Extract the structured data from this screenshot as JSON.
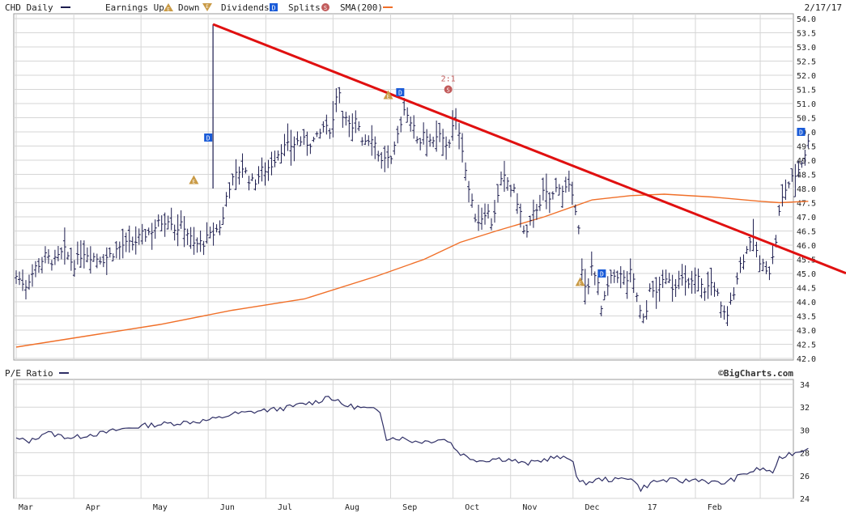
{
  "header": {
    "symbol_label": "CHD Daily",
    "earnings_label": "Earnings Up",
    "earnings_down_label": "Down",
    "dividends_label": "Dividends",
    "splits_label": "Splits",
    "sma_label": "SMA(200)",
    "date_label": "2/17/17"
  },
  "colors": {
    "price_bars": "#1c1c4e",
    "sma": "#f06f28",
    "trendline": "#e01010",
    "pe_line": "#2f2f66",
    "grid": "#d6d6d6",
    "earnings_marker": "#c99a45",
    "dividend_marker": "#1a5bd8",
    "split_marker": "#c25b5b"
  },
  "icons": {
    "earnings_up": "triangle-e-icon",
    "earnings_down": "inverted-triangle-e-icon",
    "dividend": "square-d-icon",
    "split": "circle-s-icon"
  },
  "split_ratio_label": "2:1",
  "watermark": "©BigCharts.com",
  "pe_panel": {
    "label": "P/E Ratio"
  },
  "chart_data": [
    {
      "type": "line",
      "title": "CHD Daily",
      "ylim": [
        42.0,
        54.0
      ],
      "y_ticks": [
        "54.0",
        "53.5",
        "53.0",
        "52.5",
        "52.0",
        "51.5",
        "51.0",
        "50.5",
        "50.0",
        "49.5",
        "49.0",
        "48.5",
        "48.0",
        "47.5",
        "47.0",
        "46.5",
        "46.0",
        "45.5",
        "45.0",
        "44.5",
        "44.0",
        "43.5",
        "43.0",
        "42.5",
        "42.0"
      ],
      "x_labels": [
        "Mar",
        "Apr",
        "May",
        "Jun",
        "Jul",
        "Aug",
        "Sep",
        "Oct",
        "Nov",
        "Dec",
        "17",
        "Feb"
      ],
      "series": [
        {
          "name": "CHD Daily",
          "style": "ohlc-bars",
          "close_path": [
            [
              0,
              44.9
            ],
            [
              4,
              44.6
            ],
            [
              8,
              45.2
            ],
            [
              12,
              45.6
            ],
            [
              16,
              45.4
            ],
            [
              20,
              45.8
            ],
            [
              24,
              45.3
            ],
            [
              28,
              45.8
            ],
            [
              32,
              45.6
            ],
            [
              36,
              45.5
            ],
            [
              40,
              45.7
            ],
            [
              44,
              46.0
            ],
            [
              48,
              46.0
            ],
            [
              52,
              46.3
            ],
            [
              56,
              46.5
            ],
            [
              60,
              46.8
            ],
            [
              64,
              47.0
            ],
            [
              66,
              46.6
            ],
            [
              70,
              46.7
            ],
            [
              74,
              46.0
            ],
            [
              78,
              46.1
            ],
            [
              82,
              46.4
            ],
            [
              86,
              46.8
            ],
            [
              88,
              48.0
            ],
            [
              92,
              48.5
            ],
            [
              94,
              48.8
            ],
            [
              96,
              48.5
            ],
            [
              98,
              48.2
            ],
            [
              100,
              48.3
            ],
            [
              102,
              48.6
            ],
            [
              106,
              48.8
            ],
            [
              110,
              49.4
            ],
            [
              114,
              49.5
            ],
            [
              118,
              49.7
            ],
            [
              122,
              49.6
            ],
            [
              126,
              49.8
            ],
            [
              128,
              50.2
            ],
            [
              130,
              50.0
            ],
            [
              132,
              50.4
            ],
            [
              134,
              51.8
            ],
            [
              136,
              50.7
            ],
            [
              138,
              50.3
            ],
            [
              140,
              50.0
            ],
            [
              142,
              50.5
            ],
            [
              144,
              49.8
            ],
            [
              146,
              49.7
            ],
            [
              148,
              49.9
            ],
            [
              150,
              49.5
            ],
            [
              152,
              48.9
            ],
            [
              154,
              49.2
            ],
            [
              156,
              48.8
            ],
            [
              158,
              49.5
            ],
            [
              160,
              50.3
            ],
            [
              162,
              50.9
            ],
            [
              164,
              50.5
            ],
            [
              166,
              50.0
            ],
            [
              168,
              49.6
            ],
            [
              170,
              50.1
            ],
            [
              172,
              49.8
            ],
            [
              174,
              49.5
            ],
            [
              176,
              49.9
            ],
            [
              178,
              49.7
            ],
            [
              180,
              49.5
            ],
            [
              182,
              50.2
            ],
            [
              184,
              50.3
            ],
            [
              186,
              49.4
            ],
            [
              188,
              48.2
            ],
            [
              190,
              47.4
            ],
            [
              192,
              46.8
            ],
            [
              194,
              47.0
            ],
            [
              196,
              47.3
            ],
            [
              198,
              46.8
            ],
            [
              200,
              47.4
            ],
            [
              202,
              48.2
            ],
            [
              204,
              48.4
            ],
            [
              206,
              48.0
            ],
            [
              208,
              47.8
            ],
            [
              210,
              47.2
            ],
            [
              212,
              46.2
            ],
            [
              214,
              46.7
            ],
            [
              216,
              47.2
            ],
            [
              218,
              47.5
            ],
            [
              220,
              47.9
            ],
            [
              222,
              47.6
            ],
            [
              224,
              47.8
            ],
            [
              226,
              48.2
            ],
            [
              228,
              47.9
            ],
            [
              230,
              48.1
            ],
            [
              232,
              47.5
            ],
            [
              234,
              47.2
            ],
            [
              236,
              44.7
            ],
            [
              238,
              44.2
            ],
            [
              240,
              45.4
            ],
            [
              242,
              44.8
            ],
            [
              244,
              43.6
            ],
            [
              246,
              44.4
            ],
            [
              248,
              44.8
            ],
            [
              250,
              45.0
            ],
            [
              252,
              44.9
            ],
            [
              254,
              44.7
            ],
            [
              256,
              45.0
            ],
            [
              258,
              44.5
            ],
            [
              260,
              43.6
            ],
            [
              262,
              43.2
            ],
            [
              264,
              44.6
            ],
            [
              266,
              44.1
            ],
            [
              268,
              44.7
            ],
            [
              270,
              44.6
            ],
            [
              272,
              44.9
            ],
            [
              274,
              44.4
            ],
            [
              276,
              45.0
            ],
            [
              278,
              44.7
            ],
            [
              280,
              44.5
            ],
            [
              282,
              44.8
            ],
            [
              284,
              44.9
            ],
            [
              286,
              44.4
            ],
            [
              288,
              44.5
            ],
            [
              290,
              44.7
            ],
            [
              292,
              44.3
            ],
            [
              294,
              43.6
            ],
            [
              296,
              43.5
            ],
            [
              298,
              44.0
            ],
            [
              300,
              44.8
            ],
            [
              302,
              45.4
            ],
            [
              304,
              45.7
            ],
            [
              306,
              46.3
            ],
            [
              308,
              46.0
            ],
            [
              310,
              45.2
            ],
            [
              312,
              45.3
            ],
            [
              314,
              45.1
            ],
            [
              316,
              45.8
            ],
            [
              318,
              47.2
            ],
            [
              320,
              47.9
            ],
            [
              322,
              48.2
            ],
            [
              324,
              48.4
            ],
            [
              326,
              48.7
            ],
            [
              328,
              49.1
            ],
            [
              330,
              49.6
            ]
          ],
          "ohlc_bar_count": 246
        },
        {
          "name": "SMA(200)",
          "points": [
            [
              0,
              42.4
            ],
            [
              30,
              42.8
            ],
            [
              60,
              43.2
            ],
            [
              90,
              43.7
            ],
            [
              120,
              44.1
            ],
            [
              150,
              44.9
            ],
            [
              170,
              45.5
            ],
            [
              185,
              46.1
            ],
            [
              200,
              46.5
            ],
            [
              220,
              47.0
            ],
            [
              240,
              47.6
            ],
            [
              256,
              47.75
            ],
            [
              270,
              47.8
            ],
            [
              290,
              47.7
            ],
            [
              310,
              47.55
            ],
            [
              318,
              47.5
            ],
            [
              330,
              47.55
            ]
          ]
        },
        {
          "name": "trendline",
          "points": [
            [
              82,
              53.8
            ],
            [
              340,
              45.2
            ]
          ]
        }
      ],
      "earnings_markers": [
        {
          "kind": "up",
          "t": 74,
          "price": 48.3
        },
        {
          "kind": "up",
          "t": 155,
          "price": 51.3
        },
        {
          "kind": "up",
          "t": 235,
          "price": 44.7
        }
      ],
      "dividend_markers": [
        {
          "t": 80,
          "price": 49.8
        },
        {
          "t": 160,
          "price": 51.4
        },
        {
          "t": 244,
          "price": 45.0
        },
        {
          "t": 327,
          "price": 50.0
        }
      ],
      "split_markers": [
        {
          "t": 180,
          "price": 51.5
        }
      ]
    },
    {
      "type": "line",
      "title": "P/E Ratio",
      "ylim": [
        24,
        34
      ],
      "y_ticks": [
        "34",
        "32",
        "30",
        "28",
        "26",
        "24"
      ],
      "x_labels": [
        "Mar",
        "Apr",
        "May",
        "Jun",
        "Jul",
        "Aug",
        "Sep",
        "Oct",
        "Nov",
        "Dec",
        "17",
        "Feb"
      ],
      "series": [
        {
          "name": "P/E Ratio",
          "points": [
            [
              0,
              29.2
            ],
            [
              6,
              29.0
            ],
            [
              12,
              29.8
            ],
            [
              18,
              29.5
            ],
            [
              24,
              29.3
            ],
            [
              30,
              29.6
            ],
            [
              36,
              29.7
            ],
            [
              42,
              30.0
            ],
            [
              48,
              30.2
            ],
            [
              54,
              30.4
            ],
            [
              60,
              30.5
            ],
            [
              66,
              30.6
            ],
            [
              72,
              30.7
            ],
            [
              78,
              30.8
            ],
            [
              84,
              31.0
            ],
            [
              90,
              31.4
            ],
            [
              96,
              31.5
            ],
            [
              102,
              31.7
            ],
            [
              108,
              31.8
            ],
            [
              114,
              32.0
            ],
            [
              120,
              32.3
            ],
            [
              126,
              32.5
            ],
            [
              130,
              33.0
            ],
            [
              136,
              32.2
            ],
            [
              142,
              32.0
            ],
            [
              148,
              31.8
            ],
            [
              152,
              31.6
            ],
            [
              154,
              29.3
            ],
            [
              160,
              29.3
            ],
            [
              166,
              29.0
            ],
            [
              172,
              29.0
            ],
            [
              176,
              29.2
            ],
            [
              180,
              29.1
            ],
            [
              184,
              28.1
            ],
            [
              188,
              27.6
            ],
            [
              194,
              27.3
            ],
            [
              200,
              27.5
            ],
            [
              206,
              27.4
            ],
            [
              212,
              27.0
            ],
            [
              218,
              27.3
            ],
            [
              224,
              27.6
            ],
            [
              228,
              27.5
            ],
            [
              232,
              27.5
            ],
            [
              234,
              25.3
            ],
            [
              238,
              25.4
            ],
            [
              244,
              25.7
            ],
            [
              250,
              25.6
            ],
            [
              256,
              25.9
            ],
            [
              260,
              24.8
            ],
            [
              266,
              25.5
            ],
            [
              272,
              25.6
            ],
            [
              278,
              25.5
            ],
            [
              284,
              25.7
            ],
            [
              290,
              25.4
            ],
            [
              294,
              25.3
            ],
            [
              298,
              25.6
            ],
            [
              304,
              26.2
            ],
            [
              310,
              26.6
            ],
            [
              316,
              26.3
            ],
            [
              318,
              27.5
            ],
            [
              322,
              27.9
            ],
            [
              326,
              28.1
            ],
            [
              330,
              28.5
            ]
          ]
        }
      ]
    }
  ]
}
